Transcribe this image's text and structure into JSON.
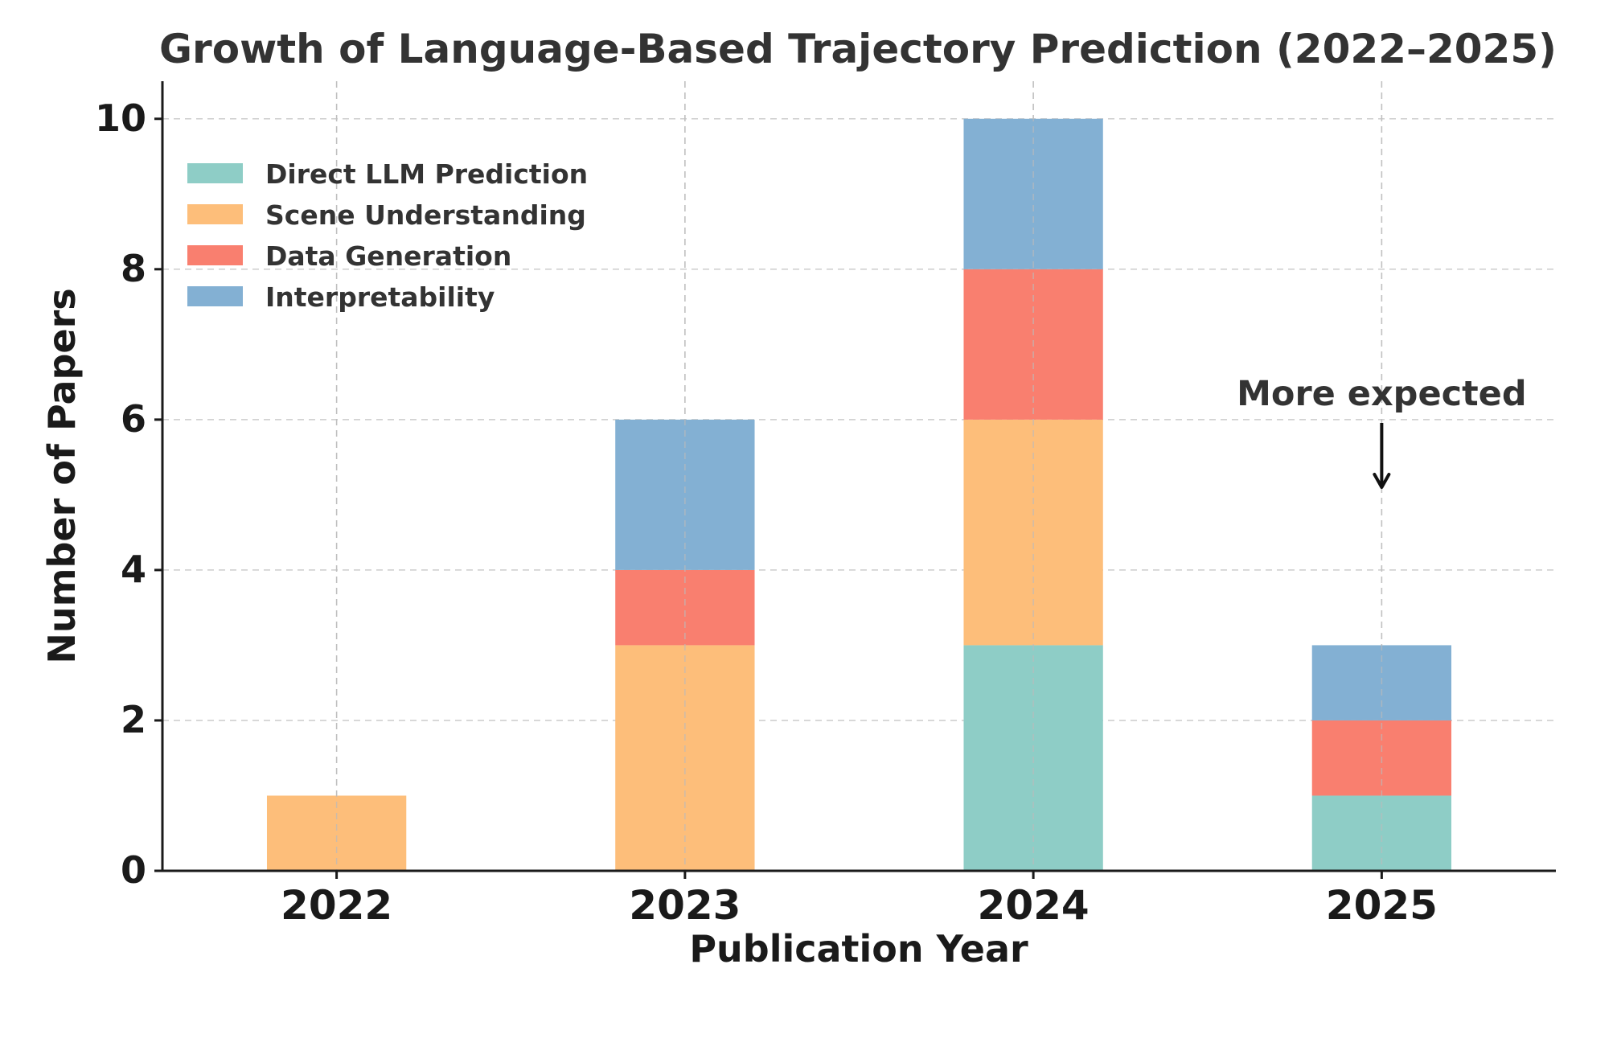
{
  "chart_data": {
    "type": "bar",
    "stacked": true,
    "title": "Growth of Language-Based Trajectory Prediction (2022–2025)",
    "xlabel": "Publication Year",
    "ylabel": "Number of Papers",
    "categories": [
      "2022",
      "2023",
      "2024",
      "2025"
    ],
    "series": [
      {
        "name": "Direct LLM Prediction",
        "color": "#8ecdc6",
        "values": [
          0,
          0,
          3,
          1
        ]
      },
      {
        "name": "Scene Understanding",
        "color": "#fdbe7a",
        "values": [
          1,
          3,
          3,
          0
        ]
      },
      {
        "name": "Data Generation",
        "color": "#f97f6f",
        "values": [
          0,
          1,
          2,
          1
        ]
      },
      {
        "name": "Interpretability",
        "color": "#83b0d3",
        "values": [
          0,
          2,
          2,
          1
        ]
      }
    ],
    "ylim": [
      0,
      10.5
    ],
    "yticks": [
      0,
      2,
      4,
      6,
      8,
      10
    ],
    "grid": true,
    "legend_position": "top-left",
    "annotation": {
      "text": "More expected",
      "category": "2025",
      "arrow_to_y": 5.1
    }
  }
}
